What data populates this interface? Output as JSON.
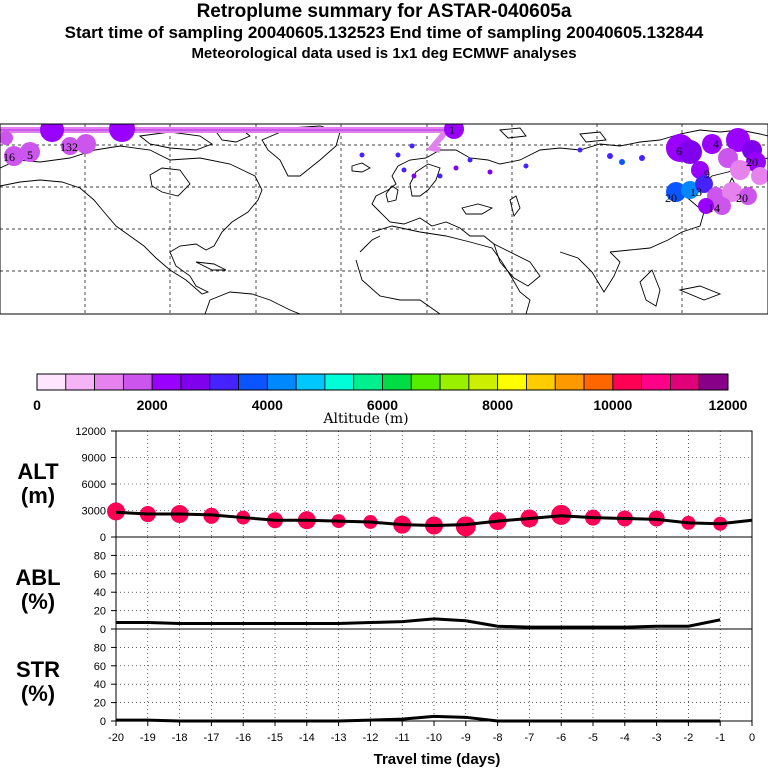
{
  "header": {
    "title": "Retroplume summary for ASTAR-040605a",
    "sampling": "Start time of sampling 20040605.132523     End time of sampling 20040605.132844",
    "met": "Meteorological data used is 1x1 deg ECMWF analyses"
  },
  "colorbar": {
    "colors": [
      "#ffe6ff",
      "#f5b4f5",
      "#e682ee",
      "#cc55ee",
      "#9a00ff",
      "#8000ee",
      "#4622ff",
      "#0a55ff",
      "#0088ff",
      "#00c8ff",
      "#00ffd8",
      "#00f090",
      "#00dd44",
      "#55ee00",
      "#99f000",
      "#ccee00",
      "#ffff00",
      "#ffcc00",
      "#ff9900",
      "#ff6600",
      "#ff0055",
      "#ff0088",
      "#e0007a",
      "#880088"
    ],
    "ticks": [
      "0",
      "2000",
      "4000",
      "6000",
      "8000",
      "10000",
      "12000"
    ],
    "label": "Altitude (m)"
  },
  "map": {
    "labels": [
      "16",
      "5",
      "132",
      "1",
      "6",
      "4",
      "20",
      "13",
      "20",
      "14",
      "9",
      "20"
    ]
  },
  "chart_data": [
    {
      "type": "line",
      "panel": "ALT",
      "ylabel_top": "ALT",
      "ylabel_bottom": "(m)",
      "yticks": [
        "12000",
        "9000",
        "6000",
        "3000",
        "0"
      ],
      "ylim": [
        0,
        12000
      ],
      "x": [
        -20,
        -19,
        -18,
        -17,
        -16,
        -15,
        -14,
        -13,
        -12,
        -11,
        -10,
        -9,
        -8,
        -7,
        -6,
        -5,
        -4,
        -3,
        -2,
        -1,
        0
      ],
      "values": [
        2800,
        2600,
        2600,
        2500,
        2200,
        1900,
        1900,
        1800,
        1700,
        1400,
        1300,
        1400,
        1800,
        2100,
        2400,
        2200,
        2100,
        2000,
        1600,
        1500,
        1900
      ],
      "marker_color": "#ff0055",
      "marker_x": [
        -20,
        -19,
        -18,
        -17,
        -16,
        -15,
        -14,
        -13,
        -12,
        -11,
        -10,
        -9,
        -8,
        -7,
        -6,
        -5,
        -4,
        -3,
        -2,
        -1
      ],
      "marker_values": [
        2900,
        2600,
        2600,
        2400,
        2200,
        1900,
        1900,
        1800,
        1700,
        1400,
        1300,
        1200,
        1800,
        2100,
        2500,
        2200,
        2100,
        2100,
        1600,
        1500
      ],
      "marker_sizes": [
        9,
        8,
        9,
        8,
        7,
        8,
        9,
        7,
        7,
        9,
        9,
        10,
        9,
        9,
        10,
        8,
        8,
        8,
        7,
        7
      ]
    },
    {
      "type": "line",
      "panel": "ABL",
      "ylabel_top": "ABL",
      "ylabel_bottom": "(%)",
      "yticks": [
        "80",
        "60",
        "40",
        "20",
        "0"
      ],
      "ylim": [
        0,
        100
      ],
      "x": [
        -20,
        -19,
        -18,
        -17,
        -16,
        -15,
        -14,
        -13,
        -12,
        -11,
        -10,
        -9,
        -8,
        -7,
        -6,
        -5,
        -4,
        -3,
        -2,
        -1
      ],
      "values": [
        7,
        7,
        6,
        6,
        6,
        6,
        6,
        6,
        7,
        8,
        11,
        9,
        3,
        2,
        2,
        2,
        2,
        3,
        3,
        10
      ]
    },
    {
      "type": "line",
      "panel": "STR",
      "ylabel_top": "STR",
      "ylabel_bottom": "(%)",
      "yticks": [
        "80",
        "60",
        "40",
        "20",
        "0"
      ],
      "ylim": [
        0,
        100
      ],
      "x": [
        -20,
        -19,
        -18,
        -17,
        -16,
        -15,
        -14,
        -13,
        -12,
        -11,
        -10,
        -9,
        -8,
        -7,
        -6,
        -5,
        -4,
        -3,
        -2,
        -1
      ],
      "values": [
        1,
        1,
        0,
        0,
        0,
        0,
        0,
        0,
        1,
        2,
        5,
        4,
        0,
        0,
        0,
        0,
        0,
        0,
        0,
        0
      ]
    }
  ],
  "xaxis": {
    "ticks": [
      "-20",
      "-19",
      "-18",
      "-17",
      "-16",
      "-15",
      "-14",
      "-13",
      "-12",
      "-11",
      "-10",
      "-9",
      "-8",
      "-7",
      "-6",
      "-5",
      "-4",
      "-3",
      "-2",
      "-1",
      "0"
    ],
    "title": "Travel time (days)",
    "xlim": [
      -20,
      0
    ]
  }
}
